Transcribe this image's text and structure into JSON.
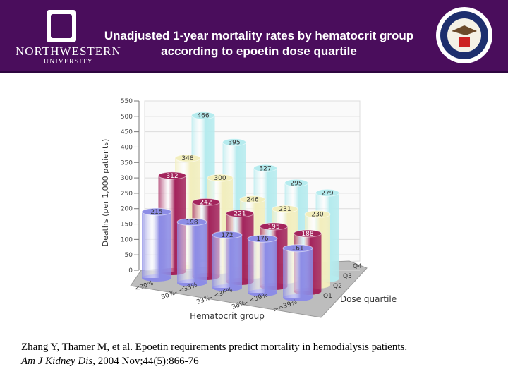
{
  "header": {
    "logo_lines": [
      "NORTHWESTERN",
      "UNIVERSITY"
    ]
  },
  "chart_data": {
    "type": "bar",
    "title": "Unadjusted 1-year mortality rates by hematocrit group according to epoetin dose quartile",
    "x_label": "Hematocrit group",
    "y_label": "Deaths (per 1,000 patients)",
    "z_label": "Dose quartile",
    "categories": [
      "<30%",
      "30%- <33%",
      "33%- <36%",
      "36%- <39%",
      ">=39%"
    ],
    "series": [
      {
        "name": "Q1",
        "color": "#8c8ce6",
        "values": [
          215,
          198,
          172,
          176,
          161
        ]
      },
      {
        "name": "Q2",
        "color": "#a3245c",
        "values": [
          312,
          242,
          221,
          195,
          188
        ]
      },
      {
        "name": "Q3",
        "color": "#f2eebd",
        "values": [
          348,
          300,
          246,
          231,
          230
        ]
      },
      {
        "name": "Q4",
        "color": "#b5ebee",
        "values": [
          466,
          395,
          327,
          295,
          279
        ]
      }
    ],
    "ylim": [
      0,
      550
    ],
    "yticks": [
      0,
      50,
      100,
      150,
      200,
      250,
      300,
      350,
      400,
      450,
      500,
      550
    ],
    "grid": true
  },
  "citation": {
    "text": "Zhang Y, Thamer M, et al. Epoetin requirements predict mortality in hemodialysis patients.",
    "journal": "Am J Kidney Dis",
    "details": ", 2004 Nov;44(5):866-76"
  }
}
